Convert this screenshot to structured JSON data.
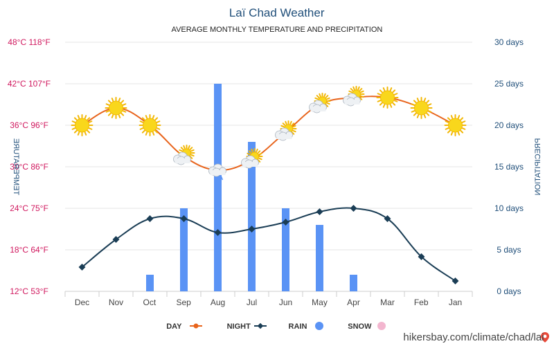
{
  "header": {
    "title": "Laï Chad Weather",
    "subtitle": "AVERAGE MONTHLY TEMPERATURE AND PRECIPITATION"
  },
  "axes": {
    "left_label": "PRECIPITATION",
    "right_label": "TEMPERATURE"
  },
  "footer": {
    "source": "hikersbay.com/climate/chad/lai"
  },
  "colors": {
    "day": "#e8641c",
    "night": "#1a3d55",
    "rain": "#5a93f5",
    "snow": "#f3b6cf",
    "left_axis_text": "#1f4e79",
    "right_axis_text": "#d0185e",
    "lowest_temp_tick": "#4caf1c"
  },
  "chart_data": {
    "type": "line",
    "categories": [
      "Jan",
      "Feb",
      "Mar",
      "Apr",
      "May",
      "Jun",
      "Jul",
      "Aug",
      "Sep",
      "Oct",
      "Nov",
      "Dec"
    ],
    "series": [
      {
        "name": "DAY",
        "kind": "line",
        "axis": "temperature",
        "unit": "°C",
        "values": [
          36,
          38.5,
          40,
          40,
          39,
          35,
          31,
          29.5,
          31.5,
          36,
          38.5,
          36
        ]
      },
      {
        "name": "NIGHT",
        "kind": "line",
        "axis": "temperature",
        "unit": "°C",
        "values": [
          13.5,
          17,
          22.5,
          24,
          23.5,
          22,
          21,
          20.5,
          22.5,
          22.5,
          19.5,
          15.5
        ]
      },
      {
        "name": "RAIN",
        "kind": "bar",
        "axis": "precipitation",
        "unit": "days",
        "values": [
          0,
          0,
          0,
          2,
          8,
          10,
          18,
          25,
          10,
          2,
          0,
          0
        ]
      },
      {
        "name": "SNOW",
        "kind": "bar",
        "axis": "precipitation",
        "unit": "days",
        "values": [
          0,
          0,
          0,
          0,
          0,
          0,
          0,
          0,
          0,
          0,
          0,
          0
        ]
      }
    ],
    "weather_icons": [
      "sunny",
      "sunny",
      "sunny",
      "partly-cloudy",
      "partly-cloudy",
      "partly-cloudy",
      "partly-cloudy",
      "rain",
      "partly-cloudy",
      "sunny",
      "sunny",
      "sunny"
    ],
    "left_axis": {
      "ticks": [
        "0 days",
        "5 days",
        "10 days",
        "15 days",
        "20 days",
        "25 days",
        "30 days"
      ],
      "range": [
        0,
        30
      ]
    },
    "right_axis": {
      "ticks": [
        "12°C 53°F",
        "18°C 64°F",
        "24°C 75°F",
        "30°C 86°F",
        "36°C 96°F",
        "42°C 107°F",
        "48°C 118°F"
      ],
      "range": [
        12,
        48
      ]
    },
    "legend": [
      "DAY",
      "NIGHT",
      "RAIN",
      "SNOW"
    ],
    "legend_position": "bottom",
    "grid": true
  }
}
